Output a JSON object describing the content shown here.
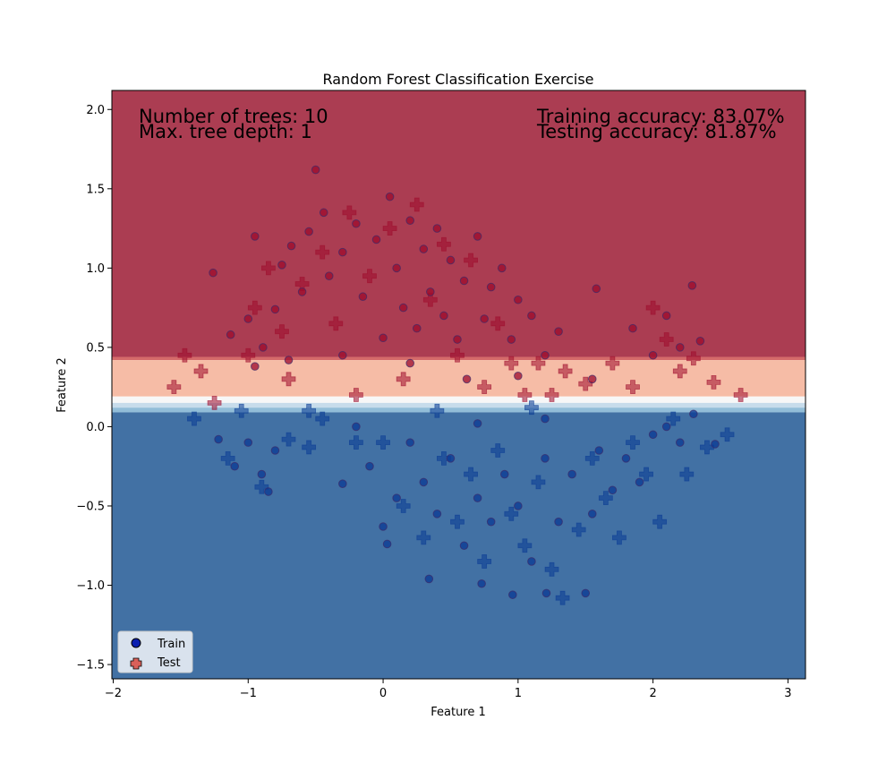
{
  "chart_data": {
    "type": "scatter",
    "title": "Random Forest Classification Exercise",
    "xlabel": "Feature 1",
    "ylabel": "Feature 2",
    "xlim": [
      -2.01,
      3.13
    ],
    "ylim": [
      -1.59,
      2.12
    ],
    "xticks": [
      -2,
      -1,
      0,
      1,
      2,
      3
    ],
    "yticks": [
      -1.5,
      -1.0,
      -0.5,
      0.0,
      0.5,
      1.0,
      1.5,
      2.0
    ],
    "xtick_labels": [
      "−2",
      "−1",
      "0",
      "1",
      "2",
      "3"
    ],
    "ytick_labels": [
      "−1.5",
      "−1.0",
      "−0.5",
      "0.0",
      "0.5",
      "1.0",
      "1.5",
      "2.0"
    ],
    "grid": false,
    "legend_position": "lower-left",
    "annotations": {
      "trees": "Number of trees: 10",
      "depth": "Max. tree depth: 1",
      "train_acc": "Training accuracy: 83.07%",
      "test_acc": "Testing accuracy: 81.87%"
    },
    "decision_bands": [
      {
        "y_from": 0.44,
        "y_to": 2.12,
        "color": "#ab3d52"
      },
      {
        "y_from": 0.42,
        "y_to": 0.44,
        "color": "#d46a6a"
      },
      {
        "y_from": 0.19,
        "y_to": 0.42,
        "color": "#f6bca6"
      },
      {
        "y_from": 0.15,
        "y_to": 0.19,
        "color": "#f7f7f7"
      },
      {
        "y_from": 0.12,
        "y_to": 0.15,
        "color": "#c7dceb"
      },
      {
        "y_from": 0.09,
        "y_to": 0.12,
        "color": "#92bdd8"
      },
      {
        "y_from": -1.59,
        "y_to": 0.09,
        "color": "#4271a4"
      }
    ],
    "colors": {
      "class_red": "#9e0b2c",
      "class_blue": "#0a3a94",
      "train_edge": "#3a2a6a"
    },
    "series": [
      {
        "name": "Train",
        "marker": "circle"
      },
      {
        "name": "Test",
        "marker": "plus"
      }
    ],
    "train_points": [
      [
        -1.26,
        0.97
      ],
      [
        -1.13,
        0.58
      ],
      [
        -1.0,
        0.68
      ],
      [
        -0.95,
        1.2
      ],
      [
        -0.89,
        0.5
      ],
      [
        -0.8,
        0.74
      ],
      [
        -0.75,
        1.02
      ],
      [
        -0.68,
        1.14
      ],
      [
        -0.6,
        0.85
      ],
      [
        -0.55,
        1.23
      ],
      [
        -0.5,
        1.62
      ],
      [
        -0.44,
        1.35
      ],
      [
        -0.4,
        0.95
      ],
      [
        -0.3,
        1.1
      ],
      [
        -0.2,
        1.28
      ],
      [
        -0.15,
        0.82
      ],
      [
        -0.05,
        1.18
      ],
      [
        0.0,
        0.56
      ],
      [
        0.05,
        1.45
      ],
      [
        0.1,
        1.0
      ],
      [
        0.15,
        0.75
      ],
      [
        0.2,
        1.3
      ],
      [
        0.25,
        0.62
      ],
      [
        0.3,
        1.12
      ],
      [
        0.35,
        0.85
      ],
      [
        0.4,
        1.25
      ],
      [
        0.45,
        0.7
      ],
      [
        0.5,
        1.05
      ],
      [
        0.55,
        0.55
      ],
      [
        0.6,
        0.92
      ],
      [
        0.7,
        1.2
      ],
      [
        0.75,
        0.68
      ],
      [
        0.8,
        0.88
      ],
      [
        0.88,
        1.0
      ],
      [
        0.95,
        0.55
      ],
      [
        1.0,
        0.8
      ],
      [
        1.1,
        0.7
      ],
      [
        1.2,
        0.45
      ],
      [
        1.3,
        0.6
      ],
      [
        1.58,
        0.87
      ],
      [
        1.85,
        0.62
      ],
      [
        2.0,
        0.45
      ],
      [
        2.1,
        0.7
      ],
      [
        2.2,
        0.5
      ],
      [
        2.29,
        0.89
      ],
      [
        2.35,
        0.54
      ],
      [
        -0.95,
        0.38
      ],
      [
        -0.7,
        0.42
      ],
      [
        -0.3,
        0.45
      ],
      [
        0.2,
        0.4
      ],
      [
        0.62,
        0.3
      ],
      [
        1.0,
        0.32
      ],
      [
        1.55,
        0.3
      ],
      [
        -1.22,
        -0.08
      ],
      [
        -1.1,
        -0.25
      ],
      [
        -1.0,
        -0.1
      ],
      [
        -0.9,
        -0.3
      ],
      [
        -0.85,
        -0.41
      ],
      [
        -0.8,
        -0.15
      ],
      [
        -0.3,
        -0.36
      ],
      [
        -0.1,
        -0.25
      ],
      [
        0.0,
        -0.63
      ],
      [
        0.03,
        -0.74
      ],
      [
        0.1,
        -0.45
      ],
      [
        0.2,
        -0.1
      ],
      [
        0.3,
        -0.35
      ],
      [
        0.34,
        -0.96
      ],
      [
        0.4,
        -0.55
      ],
      [
        0.5,
        -0.2
      ],
      [
        0.6,
        -0.75
      ],
      [
        0.7,
        -0.45
      ],
      [
        0.73,
        -0.99
      ],
      [
        0.8,
        -0.6
      ],
      [
        0.9,
        -0.3
      ],
      [
        0.96,
        -1.06
      ],
      [
        1.0,
        -0.5
      ],
      [
        1.1,
        -0.85
      ],
      [
        1.2,
        -0.2
      ],
      [
        1.21,
        -1.05
      ],
      [
        1.3,
        -0.6
      ],
      [
        1.4,
        -0.3
      ],
      [
        1.5,
        -1.05
      ],
      [
        1.55,
        -0.55
      ],
      [
        1.6,
        -0.15
      ],
      [
        1.7,
        -0.4
      ],
      [
        1.8,
        -0.2
      ],
      [
        1.9,
        -0.35
      ],
      [
        2.0,
        -0.05
      ],
      [
        2.1,
        0.0
      ],
      [
        2.2,
        -0.1
      ],
      [
        2.3,
        0.08
      ],
      [
        2.46,
        -0.11
      ],
      [
        1.2,
        0.05
      ],
      [
        0.7,
        0.02
      ],
      [
        -0.2,
        0.0
      ]
    ],
    "test_points": [
      [
        -1.55,
        0.25
      ],
      [
        -1.47,
        0.45
      ],
      [
        -1.4,
        0.05
      ],
      [
        -1.35,
        0.35
      ],
      [
        -1.25,
        0.15
      ],
      [
        -1.15,
        -0.2
      ],
      [
        -1.05,
        0.1
      ],
      [
        -1.0,
        0.45
      ],
      [
        -0.95,
        0.75
      ],
      [
        -0.85,
        1.0
      ],
      [
        -0.75,
        0.6
      ],
      [
        -0.7,
        0.3
      ],
      [
        -0.6,
        0.9
      ],
      [
        -0.55,
        0.1
      ],
      [
        -0.45,
        1.1
      ],
      [
        -0.35,
        0.65
      ],
      [
        -0.25,
        1.35
      ],
      [
        -0.2,
        0.2
      ],
      [
        -0.1,
        0.95
      ],
      [
        0.05,
        1.25
      ],
      [
        0.15,
        0.3
      ],
      [
        0.25,
        1.4
      ],
      [
        0.35,
        0.8
      ],
      [
        0.45,
        1.15
      ],
      [
        0.55,
        0.45
      ],
      [
        0.65,
        1.05
      ],
      [
        0.75,
        0.25
      ],
      [
        0.85,
        0.65
      ],
      [
        0.95,
        0.4
      ],
      [
        1.05,
        0.2
      ],
      [
        1.15,
        0.4
      ],
      [
        1.25,
        0.2
      ],
      [
        1.35,
        0.35
      ],
      [
        1.5,
        0.27
      ],
      [
        1.7,
        0.4
      ],
      [
        1.85,
        0.25
      ],
      [
        2.0,
        0.75
      ],
      [
        2.1,
        0.55
      ],
      [
        2.2,
        0.35
      ],
      [
        2.3,
        0.43
      ],
      [
        2.45,
        0.28
      ],
      [
        2.65,
        0.2
      ],
      [
        -0.9,
        -0.38
      ],
      [
        -0.7,
        -0.08
      ],
      [
        -0.55,
        -0.13
      ],
      [
        -0.2,
        -0.1
      ],
      [
        0.0,
        -0.1
      ],
      [
        0.15,
        -0.5
      ],
      [
        0.3,
        -0.7
      ],
      [
        0.45,
        -0.2
      ],
      [
        0.55,
        -0.6
      ],
      [
        0.65,
        -0.3
      ],
      [
        0.75,
        -0.85
      ],
      [
        0.85,
        -0.15
      ],
      [
        0.95,
        -0.55
      ],
      [
        1.05,
        -0.75
      ],
      [
        1.15,
        -0.35
      ],
      [
        1.25,
        -0.9
      ],
      [
        1.33,
        -1.08
      ],
      [
        1.45,
        -0.65
      ],
      [
        1.55,
        -0.2
      ],
      [
        1.65,
        -0.45
      ],
      [
        1.75,
        -0.7
      ],
      [
        1.85,
        -0.1
      ],
      [
        1.95,
        -0.3
      ],
      [
        2.05,
        -0.6
      ],
      [
        2.15,
        0.05
      ],
      [
        2.25,
        -0.3
      ],
      [
        2.4,
        -0.13
      ],
      [
        2.55,
        -0.05
      ],
      [
        1.1,
        0.12
      ],
      [
        0.4,
        0.1
      ],
      [
        -0.45,
        0.05
      ]
    ]
  }
}
